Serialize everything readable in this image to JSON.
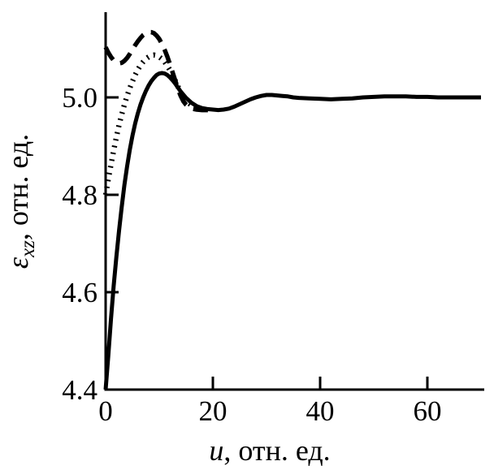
{
  "figure": {
    "background": "#ffffff",
    "line_color": "#000000"
  },
  "chart_data": {
    "type": "line",
    "title": "",
    "xlabel": "u, отн. ед.",
    "ylabel": "εxz, отн. ед.",
    "labels": {
      "x_symbol": "u",
      "x_rest": ", отн. ед.",
      "y_symbol": "ε",
      "y_sub": "xz",
      "y_rest": ", отн. ед."
    },
    "axis": {
      "xlim": [
        0,
        70
      ],
      "ylim": [
        4.4,
        5.175
      ],
      "xticks": [
        0,
        20,
        40,
        60
      ],
      "xtick_labels": [
        "0",
        "20",
        "40",
        "60"
      ],
      "yticks": [
        4.4,
        4.6,
        4.8,
        5.0
      ],
      "ytick_labels": [
        "4.4",
        "4.6",
        "4.8",
        "5.0"
      ],
      "grid": false,
      "legend": "none"
    },
    "series": [
      {
        "name": "dashed-curve",
        "style": "dashed",
        "points": [
          [
            0,
            5.103
          ],
          [
            0.5,
            5.092
          ],
          [
            1,
            5.083
          ],
          [
            1.5,
            5.076
          ],
          [
            2,
            5.072
          ],
          [
            2.5,
            5.07
          ],
          [
            3,
            5.071
          ],
          [
            3.5,
            5.075
          ],
          [
            4,
            5.081
          ],
          [
            4.5,
            5.089
          ],
          [
            5,
            5.098
          ],
          [
            5.5,
            5.107
          ],
          [
            6,
            5.115
          ],
          [
            6.5,
            5.122
          ],
          [
            7,
            5.128
          ],
          [
            7.5,
            5.132
          ],
          [
            8,
            5.134
          ],
          [
            8.5,
            5.134
          ],
          [
            9,
            5.132
          ],
          [
            9.5,
            5.127
          ],
          [
            10,
            5.12
          ],
          [
            10.5,
            5.11
          ],
          [
            11,
            5.098
          ],
          [
            11.5,
            5.084
          ],
          [
            12,
            5.068
          ],
          [
            12.5,
            5.051
          ],
          [
            13,
            5.034
          ],
          [
            13.5,
            5.017
          ],
          [
            14,
            5.003
          ],
          [
            14.5,
            4.992
          ],
          [
            15,
            4.985
          ],
          [
            15.5,
            4.98
          ],
          [
            16,
            4.977
          ],
          [
            17,
            4.975
          ],
          [
            18,
            4.974
          ],
          [
            19,
            4.974
          ],
          [
            20,
            4.975
          ]
        ]
      },
      {
        "name": "dotted-curve",
        "style": "dotted",
        "points": [
          [
            0,
            4.8
          ],
          [
            0.5,
            4.832
          ],
          [
            1,
            4.862
          ],
          [
            1.5,
            4.891
          ],
          [
            2,
            4.918
          ],
          [
            2.5,
            4.943
          ],
          [
            3,
            4.965
          ],
          [
            3.5,
            4.985
          ],
          [
            4,
            5.003
          ],
          [
            4.5,
            5.019
          ],
          [
            5,
            5.033
          ],
          [
            5.5,
            5.046
          ],
          [
            6,
            5.057
          ],
          [
            6.5,
            5.066
          ],
          [
            7,
            5.073
          ],
          [
            7.5,
            5.079
          ],
          [
            8,
            5.083
          ],
          [
            8.5,
            5.086
          ],
          [
            9,
            5.087
          ],
          [
            9.5,
            5.086
          ],
          [
            10,
            5.083
          ],
          [
            10.5,
            5.079
          ],
          [
            11,
            5.073
          ],
          [
            11.5,
            5.065
          ],
          [
            12,
            5.056
          ],
          [
            12.5,
            5.046
          ],
          [
            13,
            5.034
          ],
          [
            13.5,
            5.022
          ],
          [
            14,
            5.01
          ],
          [
            14.5,
            5.0
          ],
          [
            15,
            4.993
          ],
          [
            15.5,
            4.988
          ],
          [
            16,
            4.984
          ]
        ]
      },
      {
        "name": "solid-curve",
        "style": "solid",
        "points": [
          [
            0,
            4.4
          ],
          [
            0.5,
            4.47
          ],
          [
            1,
            4.545
          ],
          [
            1.5,
            4.613
          ],
          [
            2,
            4.672
          ],
          [
            2.5,
            4.726
          ],
          [
            3,
            4.775
          ],
          [
            3.5,
            4.82
          ],
          [
            4,
            4.858
          ],
          [
            4.5,
            4.892
          ],
          [
            5,
            4.921
          ],
          [
            5.5,
            4.946
          ],
          [
            6,
            4.967
          ],
          [
            6.5,
            4.985
          ],
          [
            7,
            5.0
          ],
          [
            7.5,
            5.013
          ],
          [
            8,
            5.024
          ],
          [
            8.5,
            5.033
          ],
          [
            9,
            5.04
          ],
          [
            9.5,
            5.046
          ],
          [
            10,
            5.049
          ],
          [
            10.5,
            5.05
          ],
          [
            11,
            5.049
          ],
          [
            11.5,
            5.046
          ],
          [
            12,
            5.041
          ],
          [
            12.5,
            5.035
          ],
          [
            13,
            5.028
          ],
          [
            13.5,
            5.02
          ],
          [
            14,
            5.012
          ],
          [
            15,
            4.999
          ],
          [
            16,
            4.989
          ],
          [
            17,
            4.982
          ],
          [
            18,
            4.978
          ],
          [
            19,
            4.976
          ],
          [
            20,
            4.975
          ],
          [
            21,
            4.974
          ],
          [
            22,
            4.975
          ],
          [
            23,
            4.977
          ],
          [
            24,
            4.981
          ],
          [
            25,
            4.986
          ],
          [
            26,
            4.991
          ],
          [
            27,
            4.996
          ],
          [
            28,
            5.0
          ],
          [
            29,
            5.003
          ],
          [
            30,
            5.005
          ],
          [
            31,
            5.005
          ],
          [
            32,
            5.004
          ],
          [
            33,
            5.003
          ],
          [
            34,
            5.002
          ],
          [
            35,
            5.0
          ],
          [
            36,
            4.999
          ],
          [
            38,
            4.998
          ],
          [
            40,
            4.997
          ],
          [
            42,
            4.996
          ],
          [
            44,
            4.997
          ],
          [
            46,
            4.998
          ],
          [
            48,
            5.0
          ],
          [
            50,
            5.001
          ],
          [
            52,
            5.002
          ],
          [
            54,
            5.002
          ],
          [
            56,
            5.002
          ],
          [
            58,
            5.001
          ],
          [
            60,
            5.001
          ],
          [
            62,
            5.0
          ],
          [
            64,
            5.0
          ],
          [
            66,
            5.0
          ],
          [
            68,
            5.0
          ],
          [
            70,
            5.0
          ]
        ]
      }
    ]
  }
}
